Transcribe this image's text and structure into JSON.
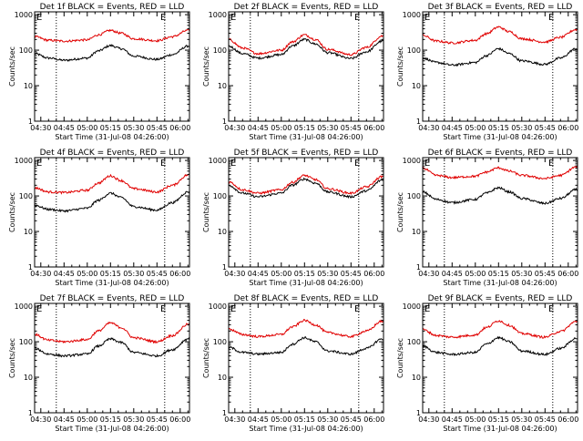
{
  "chart_data": {
    "type": "line",
    "layout": "3x3 grid",
    "xlabel": "Start Time (31-Jul-08 04:26:00)",
    "ylabel": "Counts/sec",
    "x_ticks": [
      "04:30",
      "04:45",
      "05:00",
      "05:15",
      "05:30",
      "05:45",
      "06:00"
    ],
    "y_ticks": [
      "1",
      "10",
      "100",
      "1000"
    ],
    "y_scale": "log",
    "ylim": [
      1,
      1200
    ],
    "xlim": [
      "04:26",
      "06:06"
    ],
    "grid": false,
    "marker_E": "E",
    "marker_lines_x": [
      "04:40",
      "05:50"
    ],
    "series_colors": {
      "events": "#000000",
      "lld": "#e00000"
    },
    "panels": [
      {
        "title": "Det 1f BLACK = Events, RED = LLD",
        "x": [
          "04:26",
          "04:35",
          "04:45",
          "05:00",
          "05:07",
          "05:15",
          "05:22",
          "05:30",
          "05:45",
          "05:55",
          "06:05"
        ],
        "series": [
          {
            "values": [
              80,
              60,
              52,
              60,
              95,
              135,
              110,
              68,
              55,
              75,
              130
            ]
          },
          {
            "values": [
              240,
              190,
              180,
              195,
              270,
              360,
              300,
              210,
              185,
              240,
              360
            ]
          }
        ]
      },
      {
        "title": "Det 2f BLACK = Events, RED = LLD",
        "x": [
          "04:26",
          "04:35",
          "04:45",
          "05:00",
          "05:07",
          "05:15",
          "05:22",
          "05:30",
          "05:45",
          "05:55",
          "06:05"
        ],
        "series": [
          {
            "values": [
              130,
              80,
              60,
              75,
              130,
              200,
              150,
              85,
              58,
              90,
              180
            ]
          },
          {
            "values": [
              200,
              115,
              80,
              100,
              170,
              270,
              200,
              105,
              75,
              120,
              250
            ]
          }
        ]
      },
      {
        "title": "Det 3f BLACK = Events, RED = LLD",
        "x": [
          "04:26",
          "04:35",
          "04:45",
          "05:00",
          "05:07",
          "05:15",
          "05:22",
          "05:30",
          "05:45",
          "05:55",
          "06:05"
        ],
        "series": [
          {
            "values": [
              60,
              45,
              38,
              45,
              70,
              110,
              80,
              50,
              40,
              60,
              110
            ]
          },
          {
            "values": [
              260,
              180,
              160,
              190,
              290,
              450,
              330,
              210,
              170,
              230,
              380
            ]
          }
        ]
      },
      {
        "title": "Det 4f BLACK = Events, RED = LLD",
        "x": [
          "04:26",
          "04:35",
          "04:45",
          "05:00",
          "05:07",
          "05:15",
          "05:22",
          "05:30",
          "05:45",
          "05:55",
          "06:05"
        ],
        "series": [
          {
            "values": [
              55,
              42,
              38,
              45,
              75,
              120,
              90,
              50,
              40,
              65,
              130
            ]
          },
          {
            "values": [
              170,
              130,
              125,
              145,
              230,
              370,
              270,
              160,
              130,
              200,
              390
            ]
          }
        ]
      },
      {
        "title": "Det 5f BLACK = Events, RED = LLD",
        "x": [
          "04:26",
          "04:35",
          "04:45",
          "05:00",
          "05:07",
          "05:15",
          "05:22",
          "05:30",
          "05:45",
          "05:55",
          "06:05"
        ],
        "series": [
          {
            "values": [
              200,
              120,
              95,
              120,
              200,
              300,
              230,
              130,
              95,
              140,
              280
            ]
          },
          {
            "values": [
              250,
              150,
              120,
              150,
              240,
              380,
              290,
              160,
              120,
              180,
              350
            ]
          }
        ]
      },
      {
        "title": "Det 6f BLACK = Events, RED = LLD",
        "x": [
          "04:26",
          "04:35",
          "04:45",
          "05:00",
          "05:07",
          "05:15",
          "05:22",
          "05:30",
          "05:45",
          "05:55",
          "06:05"
        ],
        "series": [
          {
            "values": [
              130,
              80,
              65,
              80,
              120,
              170,
              130,
              85,
              62,
              85,
              150
            ]
          },
          {
            "values": [
              600,
              380,
              330,
              360,
              470,
              620,
              500,
              380,
              310,
              380,
              650
            ]
          }
        ]
      },
      {
        "title": "Det 7f BLACK = Events, RED = LLD",
        "x": [
          "04:26",
          "04:35",
          "04:45",
          "05:00",
          "05:07",
          "05:15",
          "05:22",
          "05:30",
          "05:45",
          "05:55",
          "06:05"
        ],
        "series": [
          {
            "values": [
              65,
              45,
              40,
              45,
              75,
              120,
              95,
              50,
              40,
              60,
              120
            ]
          },
          {
            "values": [
              160,
              110,
              100,
              115,
              200,
              340,
              250,
              130,
              100,
              150,
              310
            ]
          }
        ]
      },
      {
        "title": "Det 8f BLACK = Events, RED = LLD",
        "x": [
          "04:26",
          "04:35",
          "04:45",
          "05:00",
          "05:07",
          "05:15",
          "05:22",
          "05:30",
          "05:45",
          "05:55",
          "06:05"
        ],
        "series": [
          {
            "values": [
              70,
              50,
              45,
              50,
              85,
              130,
              100,
              55,
              45,
              65,
              120
            ]
          },
          {
            "values": [
              230,
              160,
              140,
              160,
              260,
              400,
              300,
              180,
              140,
              200,
              380
            ]
          }
        ]
      },
      {
        "title": "Det 9f BLACK = Events, RED = LLD",
        "x": [
          "04:26",
          "04:35",
          "04:45",
          "05:00",
          "05:07",
          "05:15",
          "05:22",
          "05:30",
          "05:45",
          "05:55",
          "06:05"
        ],
        "series": [
          {
            "values": [
              75,
              50,
              44,
              50,
              85,
              130,
              100,
              55,
              44,
              65,
              125
            ]
          },
          {
            "values": [
              220,
              150,
              135,
              155,
              250,
              390,
              290,
              170,
              135,
              195,
              370
            ]
          }
        ]
      }
    ]
  }
}
